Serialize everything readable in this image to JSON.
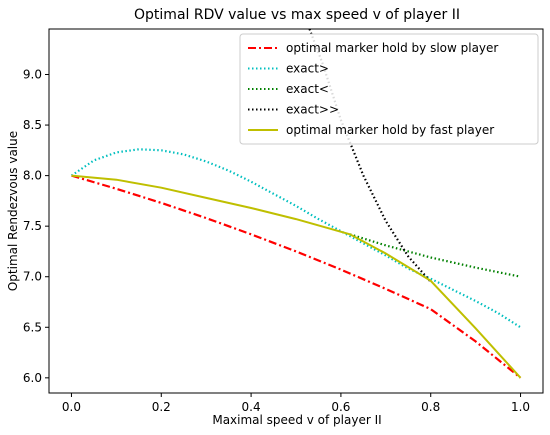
{
  "chart_data": {
    "type": "line",
    "title": "Optimal RDV value vs max speed v of player II",
    "xlabel": "Maximal speed v of player II",
    "ylabel": "Optimal Rendezvous value",
    "xlim": [
      -0.05,
      1.05
    ],
    "ylim": [
      5.85,
      9.45
    ],
    "xticks": [
      0.0,
      0.2,
      0.4,
      0.6,
      0.8,
      1.0
    ],
    "xtick_labels": [
      "0.0",
      "0.2",
      "0.4",
      "0.6",
      "0.8",
      "1.0"
    ],
    "yticks": [
      6.0,
      6.5,
      7.0,
      7.5,
      8.0,
      8.5,
      9.0
    ],
    "ytick_labels": [
      "6.0",
      "6.5",
      "7.0",
      "7.5",
      "8.0",
      "8.5",
      "9.0"
    ],
    "grid": false,
    "legend_position": "top-right",
    "series": [
      {
        "name": "optimal marker hold by slow player",
        "color": "#ff0000",
        "dash": "dashdot",
        "x": [
          0.0,
          0.1,
          0.2,
          0.3,
          0.4,
          0.5,
          0.6,
          0.7,
          0.8,
          0.9,
          1.0
        ],
        "y": [
          8.0,
          7.87,
          7.73,
          7.58,
          7.42,
          7.25,
          7.07,
          6.88,
          6.68,
          6.36,
          6.0
        ]
      },
      {
        "name": "exact>",
        "color": "#00bfbf",
        "dash": "dotted",
        "x": [
          0.0,
          0.05,
          0.1,
          0.15,
          0.2,
          0.25,
          0.3,
          0.35,
          0.4,
          0.45,
          0.5,
          0.55,
          0.6,
          0.65,
          0.7,
          0.75,
          0.8,
          0.85,
          0.9,
          0.95,
          1.0
        ],
        "y": [
          8.0,
          8.15,
          8.23,
          8.26,
          8.25,
          8.21,
          8.14,
          8.05,
          7.94,
          7.82,
          7.7,
          7.57,
          7.45,
          7.33,
          7.21,
          7.08,
          6.98,
          6.87,
          6.76,
          6.64,
          6.5
        ]
      },
      {
        "name": "exact<",
        "color": "#008000",
        "dash": "dotted",
        "x": [
          0.62,
          0.7,
          0.8,
          0.9,
          1.0
        ],
        "y": [
          7.42,
          7.31,
          7.19,
          7.09,
          7.0
        ]
      },
      {
        "name": "exact>>",
        "color": "#000000",
        "dash": "dotted",
        "x": [
          0.53,
          0.56,
          0.6,
          0.65,
          0.7,
          0.75,
          0.8
        ],
        "y": [
          9.45,
          9.1,
          8.55,
          8.0,
          7.55,
          7.2,
          6.95
        ]
      },
      {
        "name": "optimal marker hold by fast player",
        "color": "#bfbf00",
        "dash": "solid",
        "x": [
          0.0,
          0.1,
          0.2,
          0.3,
          0.4,
          0.5,
          0.62,
          0.7,
          0.8,
          0.9,
          1.0
        ],
        "y": [
          8.0,
          7.96,
          7.88,
          7.78,
          7.68,
          7.57,
          7.42,
          7.23,
          6.96,
          6.49,
          6.0
        ]
      }
    ]
  }
}
